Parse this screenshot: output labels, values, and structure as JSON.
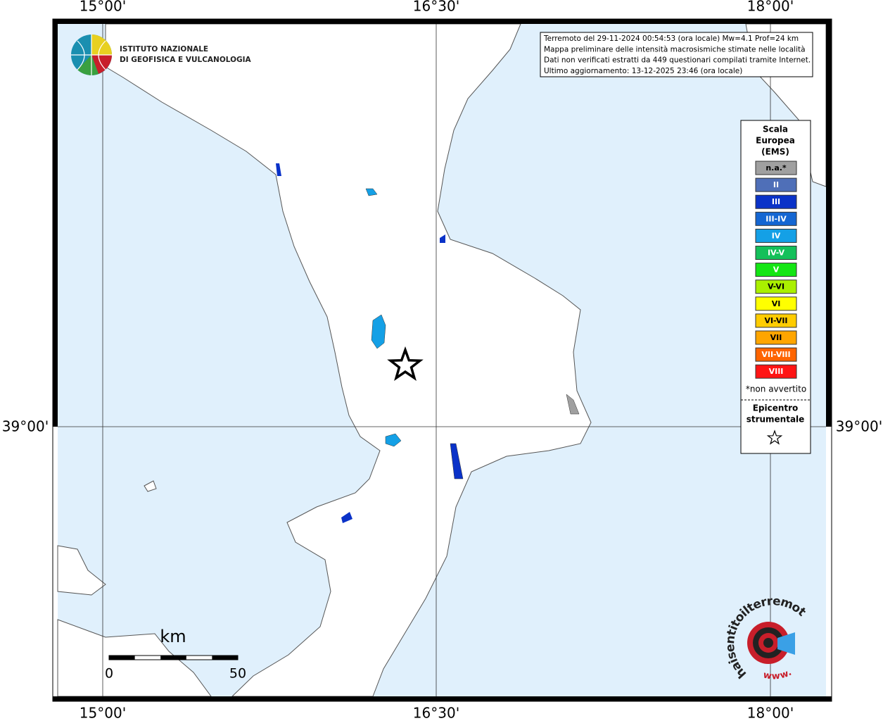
{
  "map": {
    "graticule_labels": {
      "lon": [
        "15°00'",
        "16°30'",
        "18°00'"
      ],
      "lat": [
        "39°00'"
      ]
    },
    "info_box": [
      "Terremoto del 29-11-2024 00:54:53 (ora locale) Mw=4.1 Prof=24 km",
      "Mappa preliminare delle intensità macrosismiche stimate nelle località",
      "Dati non verificati estratti da 449 questionari compilati tramite Internet.",
      "Ultimo aggiornamento: 13-12-2025 23:46 (ora locale)"
    ],
    "legend": {
      "title": [
        "Scala",
        "Europea",
        "(EMS)"
      ],
      "items": [
        {
          "label": "n.a.*",
          "color": "#a0a0a0"
        },
        {
          "label": "II",
          "color": "#4f6fb8"
        },
        {
          "label": "III",
          "color": "#0a32c8"
        },
        {
          "label": "III-IV",
          "color": "#1466d2"
        },
        {
          "label": "IV",
          "color": "#14a0e6"
        },
        {
          "label": "IV-V",
          "color": "#14c05a"
        },
        {
          "label": "V",
          "color": "#14e614"
        },
        {
          "label": "V-VI",
          "color": "#aaf000"
        },
        {
          "label": "VI",
          "color": "#ffff00"
        },
        {
          "label": "VI-VII",
          "color": "#ffcc00"
        },
        {
          "label": "VII",
          "color": "#ffa500"
        },
        {
          "label": "VII-VIII",
          "color": "#ff6400"
        },
        {
          "label": "VIII",
          "color": "#ff1414"
        }
      ],
      "note": "*non avvertito",
      "epicenter": [
        "Epicentro",
        "strumentale"
      ]
    },
    "scale_bar": {
      "unit": "km",
      "labels": [
        "0",
        "50"
      ]
    },
    "logos": {
      "ingv": [
        "ISTITUTO NAZIONALE",
        "DI GEOFISICA E VULCANOLOGIA"
      ],
      "hsit": {
        "main": "haisentitoilterremoto.it",
        "www": "www."
      }
    }
  }
}
